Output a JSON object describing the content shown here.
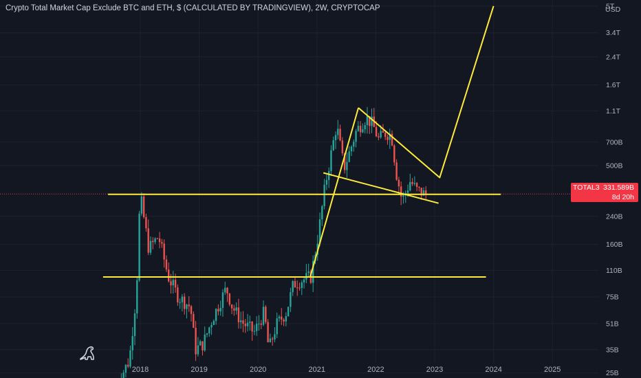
{
  "title": "Crypto Total Market Cap Exclude BTC and ETH, $ (CALCULATED BY TRADINGVIEW), 2W, CRYPTOCAP",
  "currency_label": "USD",
  "y_ticks": [
    "5T",
    "3.4T",
    "2.4T",
    "1.6T",
    "1.1T",
    "700B",
    "500B",
    "240B",
    "160B",
    "110B",
    "75B",
    "51B",
    "35B",
    "25B"
  ],
  "x_ticks": [
    "2018",
    "2019",
    "2020",
    "2021",
    "2022",
    "2023",
    "2024",
    "2025"
  ],
  "price_tag": {
    "symbol": "TOTAL3",
    "value": "331.589B",
    "countdown": "8d 20h"
  },
  "colors": {
    "background": "#131722",
    "up": "#26a69a",
    "down": "#ef5350",
    "drawing": "#ffeb3b",
    "price_line": "#f23645",
    "grid": "#1e222d",
    "axis_text": "#b2b5be"
  },
  "chart_data": {
    "type": "candlestick",
    "title": "Crypto Total Market Cap Exclude BTC and ETH, $ (CALCULATED BY TRADINGVIEW), 2W, CRYPTOCAP",
    "interval": "2W",
    "y_scale": "log",
    "y_unit": "USD",
    "last_value": "331.589B",
    "x_range": [
      "2017-06",
      "2025-09"
    ],
    "y_range_usd": [
      20000000000,
      6000000000000
    ],
    "price_anchors": [
      [
        "2017-08-01",
        20000000000.0
      ],
      [
        "2017-11-01",
        30000000000.0
      ],
      [
        "2017-12-15",
        80000000000.0
      ],
      [
        "2018-01-07",
        330000000000.0
      ],
      [
        "2018-03-01",
        150000000000.0
      ],
      [
        "2018-05-01",
        180000000000.0
      ],
      [
        "2018-07-01",
        100000000000.0
      ],
      [
        "2018-09-01",
        75000000000.0
      ],
      [
        "2018-11-15",
        65000000000.0
      ],
      [
        "2018-12-15",
        35000000000.0
      ],
      [
        "2019-02-01",
        38000000000.0
      ],
      [
        "2019-04-01",
        55000000000.0
      ],
      [
        "2019-06-25",
        85000000000.0
      ],
      [
        "2019-08-01",
        65000000000.0
      ],
      [
        "2019-10-01",
        52000000000.0
      ],
      [
        "2019-12-15",
        45000000000.0
      ],
      [
        "2020-02-15",
        60000000000.0
      ],
      [
        "2020-03-15",
        35000000000.0
      ],
      [
        "2020-05-01",
        50000000000.0
      ],
      [
        "2020-07-01",
        60000000000.0
      ],
      [
        "2020-08-15",
        90000000000.0
      ],
      [
        "2020-10-01",
        95000000000.0
      ],
      [
        "2020-12-01",
        100000000000.0
      ],
      [
        "2021-01-15",
        180000000000.0
      ],
      [
        "2021-03-01",
        380000000000.0
      ],
      [
        "2021-05-10",
        900000000000.0
      ],
      [
        "2021-06-25",
        480000000000.0
      ],
      [
        "2021-08-01",
        620000000000.0
      ],
      [
        "2021-09-10",
        830000000000.0
      ],
      [
        "2021-11-10",
        1000000000000.0
      ],
      [
        "2021-12-20",
        900000000000.0
      ],
      [
        "2022-01-25",
        730000000000.0
      ],
      [
        "2022-03-10",
        800000000000.0
      ],
      [
        "2022-04-15",
        780000000000.0
      ],
      [
        "2022-05-15",
        450000000000.0
      ],
      [
        "2022-06-20",
        300000000000.0
      ],
      [
        "2022-08-10",
        400000000000.0
      ],
      [
        "2022-09-20",
        350000000000.0
      ],
      [
        "2022-11-05",
        331589000000.0
      ]
    ],
    "drawings": [
      {
        "type": "horizontal_line",
        "value_usd": 330000000000.0,
        "from": "2017-06-15",
        "to": "2024-02-15"
      },
      {
        "type": "horizontal_line",
        "value_usd": 100000000000.0,
        "from": "2017-05-15",
        "to": "2023-11-15"
      },
      {
        "type": "trend_line",
        "points": [
          [
            "2020-11-20",
            100000000000.0
          ],
          [
            "2021-09-15",
            1150000000000.0
          ]
        ]
      },
      {
        "type": "trend_line",
        "points": [
          [
            "2021-09-15",
            1150000000000.0
          ],
          [
            "2023-02-01",
            420000000000.0
          ],
          [
            "2024-01-01",
            5000000000000.0
          ]
        ]
      },
      {
        "type": "trend_line",
        "points": [
          [
            "2021-02-10",
            450000000000.0
          ],
          [
            "2023-01-25",
            290000000000.0
          ]
        ]
      }
    ]
  }
}
